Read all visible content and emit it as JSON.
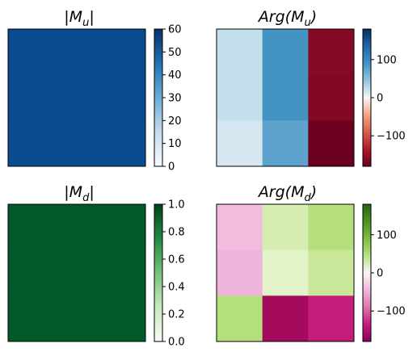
{
  "chart_data": [
    {
      "type": "heatmap",
      "title": "|M_u|",
      "title_parts": {
        "pre": "|M",
        "sub": "u",
        "post": "|"
      },
      "colormap": "Blues",
      "colorbar": {
        "range": [
          0,
          60
        ],
        "ticks": [
          "0",
          "10",
          "20",
          "30",
          "40",
          "50",
          "60"
        ]
      },
      "values": [
        [
          59.2,
          59.4,
          59.6
        ],
        [
          59.2,
          59.4,
          59.6
        ],
        [
          59.0,
          59.2,
          59.4
        ]
      ],
      "colors": [
        [
          "#0a4a90",
          "#0a4a90",
          "#0a4a90"
        ],
        [
          "#0a4a90",
          "#0a4a90",
          "#0a4a90"
        ],
        [
          "#0b4b91",
          "#0b4b91",
          "#0b4b91"
        ]
      ]
    },
    {
      "type": "heatmap",
      "title": "Arg(M_u)",
      "title_parts": {
        "pre": "Arg(M",
        "sub": "u",
        "post": ")"
      },
      "colormap": "RdBu",
      "colorbar": {
        "range": [
          -180,
          180
        ],
        "ticks": [
          "100",
          "0",
          "−100"
        ]
      },
      "values": [
        [
          48,
          120,
          -160
        ],
        [
          48,
          120,
          -160
        ],
        [
          30,
          105,
          -170
        ]
      ],
      "colors": [
        [
          "#c3dfeb",
          "#4393c3",
          "#860a24"
        ],
        [
          "#c3dfeb",
          "#4393c3",
          "#830822"
        ],
        [
          "#d6e7f1",
          "#5ea3cd",
          "#6c0021"
        ]
      ]
    },
    {
      "type": "heatmap",
      "title": "|M_d|",
      "title_parts": {
        "pre": "|M",
        "sub": "d",
        "post": "|"
      },
      "colormap": "Greens",
      "colorbar": {
        "range": [
          0,
          1
        ],
        "ticks": [
          "1.0",
          "0.8",
          "0.6",
          "0.4",
          "0.2",
          "0.0"
        ]
      },
      "values": [
        [
          1.0,
          1.0,
          1.0
        ],
        [
          1.0,
          1.0,
          1.0
        ],
        [
          1.0,
          1.0,
          1.0
        ]
      ],
      "colors": [
        [
          "#02592a",
          "#02592a",
          "#02592a"
        ],
        [
          "#02592a",
          "#02592a",
          "#02592a"
        ],
        [
          "#02592a",
          "#02592a",
          "#02592a"
        ]
      ]
    },
    {
      "type": "heatmap",
      "title": "Arg(M_d)",
      "title_parts": {
        "pre": "Arg(M",
        "sub": "d",
        "post": ")"
      },
      "colormap": "PiYG",
      "colorbar": {
        "range": [
          -180,
          180
        ],
        "ticks": [
          "100",
          "0",
          "−100"
        ]
      },
      "values": [
        [
          -45,
          45,
          95
        ],
        [
          -50,
          25,
          75
        ],
        [
          95,
          -150,
          -120
        ]
      ],
      "colors": [
        [
          "#f1bcdd",
          "#d6edb2",
          "#b4df7c"
        ],
        [
          "#efb4d9",
          "#e3f3c9",
          "#c8e799"
        ],
        [
          "#b4df7d",
          "#a40a5c",
          "#c51c7b"
        ]
      ]
    }
  ]
}
